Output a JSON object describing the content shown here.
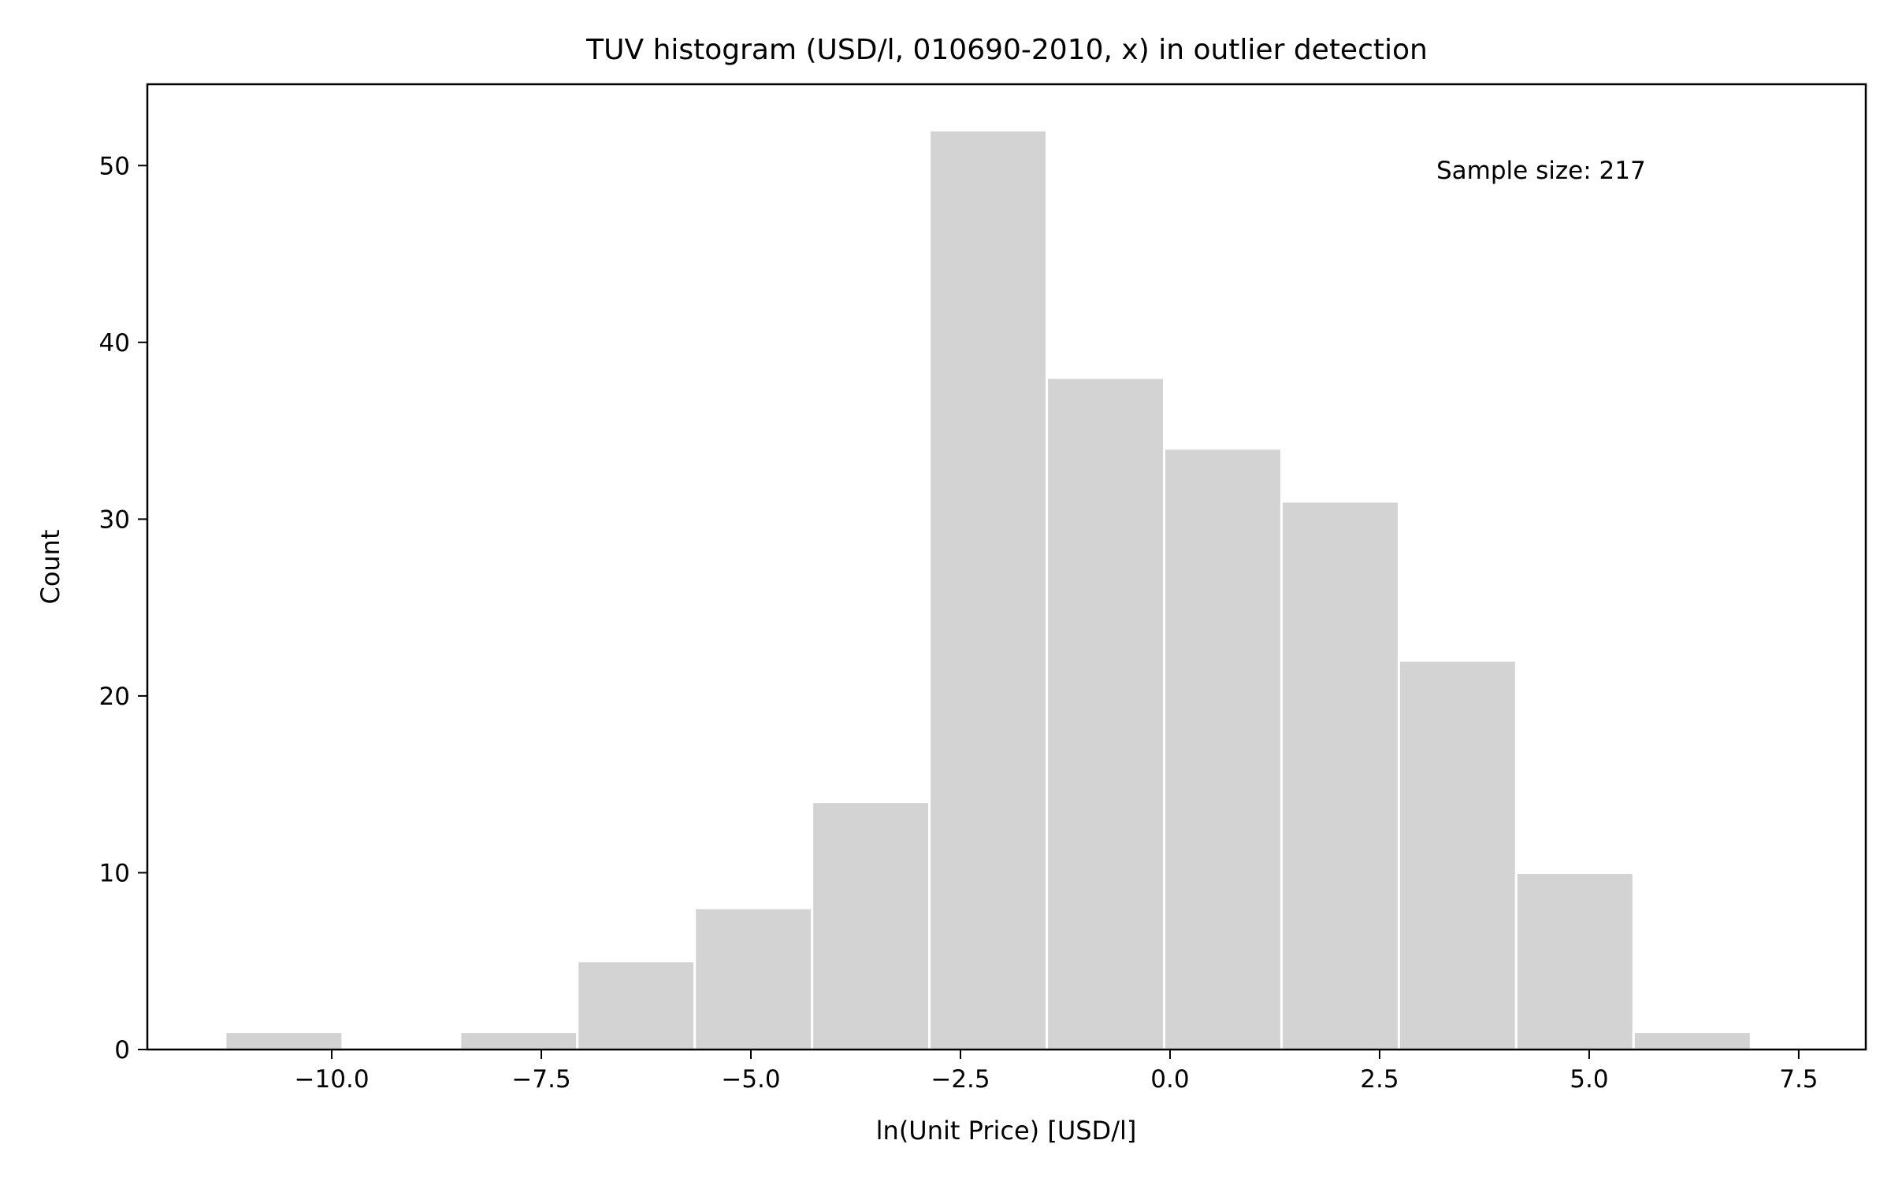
{
  "chart_data": {
    "type": "bar",
    "title": "TUV histogram (USD/l, 010690-2010, x) in outlier detection",
    "xlabel": "ln(Unit Price) [USD/l]",
    "ylabel": "Count",
    "annotation": "Sample size: 217",
    "xlim": [
      -12.2,
      8.3
    ],
    "ylim": [
      0,
      54.6
    ],
    "x_ticks": [
      {
        "value": -10.0,
        "label": "−10.0"
      },
      {
        "value": -7.5,
        "label": "−7.5"
      },
      {
        "value": -5.0,
        "label": "−5.0"
      },
      {
        "value": -2.5,
        "label": "−2.5"
      },
      {
        "value": 0.0,
        "label": "0.0"
      },
      {
        "value": 2.5,
        "label": "2.5"
      },
      {
        "value": 5.0,
        "label": "5.0"
      },
      {
        "value": 7.5,
        "label": "7.5"
      }
    ],
    "y_ticks": [
      {
        "value": 0,
        "label": "0"
      },
      {
        "value": 10,
        "label": "10"
      },
      {
        "value": 20,
        "label": "20"
      },
      {
        "value": 30,
        "label": "30"
      },
      {
        "value": 40,
        "label": "40"
      },
      {
        "value": 50,
        "label": "50"
      }
    ],
    "bin_edges": [
      -11.27,
      -9.87,
      -8.47,
      -7.07,
      -5.67,
      -4.27,
      -2.87,
      -1.47,
      -0.07,
      1.33,
      2.73,
      4.13,
      5.53,
      6.93
    ],
    "counts": [
      1,
      0,
      1,
      5,
      8,
      14,
      52,
      38,
      34,
      31,
      22,
      10,
      1
    ],
    "grid": false,
    "bar_color": "#d3d3d3",
    "bar_edge_color": "#ffffff"
  }
}
